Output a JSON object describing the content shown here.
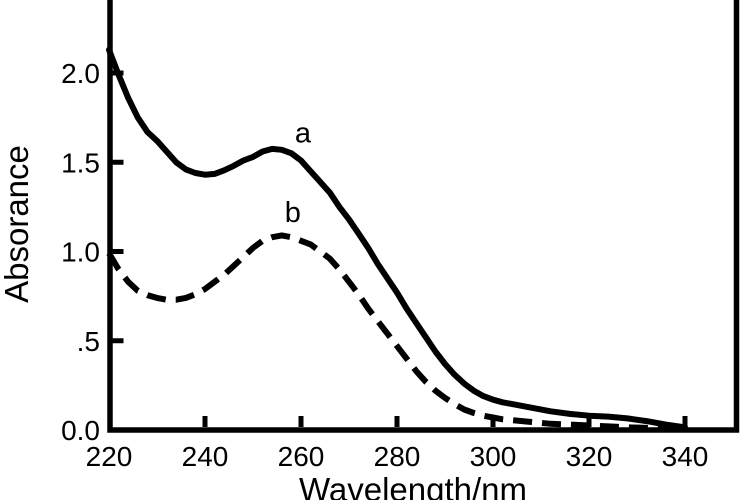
{
  "figure": {
    "background": "#ffffff",
    "ink_color": "#000000",
    "description": "UV-Vis absorption spectra, two curves labeled a (solid) and b (dashed), plot frame cropped at top and bottom edges of the image"
  },
  "chart_data": {
    "type": "line",
    "title": "",
    "xlabel": "Wavelength/nm",
    "ylabel": "Absorance",
    "xlim": [
      220,
      350.8
    ],
    "ylim": [
      0,
      2.41
    ],
    "grid": false,
    "legend_position": "none",
    "tick_direction": "in",
    "x_ticks": [
      220,
      240,
      260,
      280,
      300,
      320,
      340
    ],
    "x_tick_labels": [
      "220",
      "240",
      "260",
      "280",
      "300",
      "320",
      "340"
    ],
    "y_ticks": [
      0,
      0.5,
      1.0,
      1.5,
      2.0
    ],
    "y_tick_labels": [
      "0.0",
      ".5",
      "1.0",
      "1.5",
      "2.0"
    ],
    "x": [
      220,
      222,
      224,
      226,
      228,
      230,
      232,
      234,
      236,
      238,
      240,
      242,
      244,
      246,
      248,
      250,
      252,
      254,
      256,
      258,
      260,
      262,
      264,
      266,
      268,
      270,
      272,
      274,
      276,
      278,
      280,
      282,
      284,
      286,
      288,
      290,
      292,
      294,
      296,
      298,
      300,
      302,
      304,
      308,
      312,
      316,
      320,
      324,
      328,
      332,
      336,
      340
    ],
    "series": [
      {
        "name": "a",
        "line_style": "solid",
        "color": "#000000",
        "values": [
          2.13,
          1.99,
          1.86,
          1.75,
          1.67,
          1.62,
          1.56,
          1.5,
          1.46,
          1.44,
          1.43,
          1.435,
          1.455,
          1.48,
          1.51,
          1.53,
          1.56,
          1.575,
          1.57,
          1.55,
          1.51,
          1.45,
          1.39,
          1.33,
          1.25,
          1.18,
          1.1,
          1.02,
          0.93,
          0.85,
          0.77,
          0.68,
          0.6,
          0.52,
          0.44,
          0.37,
          0.31,
          0.26,
          0.22,
          0.19,
          0.17,
          0.155,
          0.145,
          0.125,
          0.105,
          0.09,
          0.08,
          0.075,
          0.065,
          0.05,
          0.03,
          0.015
        ]
      },
      {
        "name": "b",
        "line_style": "dashed",
        "color": "#000000",
        "values": [
          0.99,
          0.9,
          0.83,
          0.78,
          0.755,
          0.74,
          0.73,
          0.73,
          0.74,
          0.76,
          0.79,
          0.83,
          0.87,
          0.92,
          0.97,
          1.02,
          1.06,
          1.08,
          1.09,
          1.08,
          1.06,
          1.04,
          1.0,
          0.96,
          0.9,
          0.83,
          0.76,
          0.68,
          0.61,
          0.54,
          0.47,
          0.4,
          0.33,
          0.27,
          0.22,
          0.18,
          0.145,
          0.115,
          0.095,
          0.08,
          0.07,
          0.06,
          0.055,
          0.045,
          0.035,
          0.03,
          0.025,
          0.02,
          0.015,
          0.012,
          0.01,
          0.008
        ]
      }
    ],
    "annotations": [
      {
        "text": "a",
        "wavelength_nm": 260.4,
        "absorbance": 1.61
      },
      {
        "text": "b",
        "wavelength_nm": 258.3,
        "absorbance": 1.165
      }
    ]
  }
}
